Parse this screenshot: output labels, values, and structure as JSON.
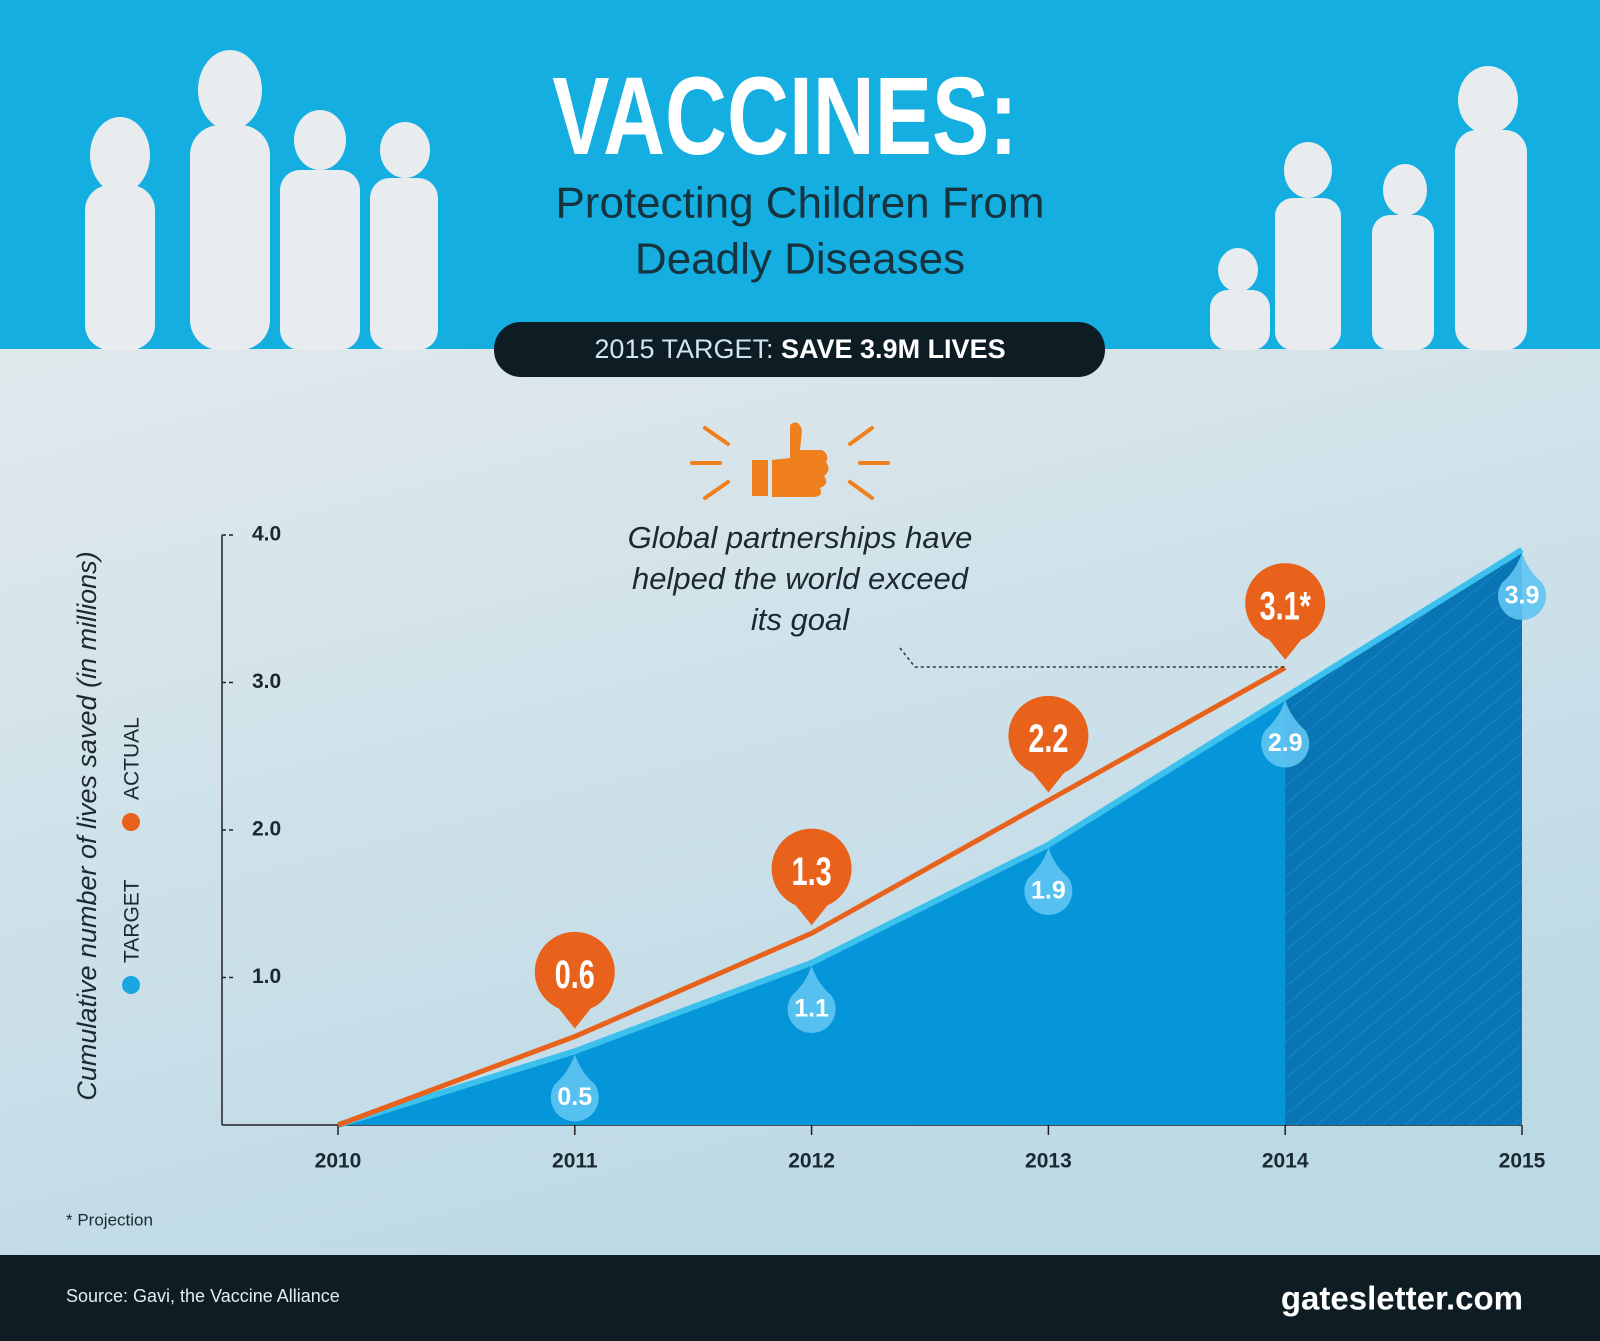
{
  "header": {
    "title": "VACCINES:",
    "subtitle_lines": [
      "Protecting Children From",
      "Deadly Diseases"
    ],
    "banner_prefix": "2015 TARGET:",
    "banner_strong": "SAVE 3.9M LIVES"
  },
  "chart_data": {
    "type": "line",
    "annotation": [
      "Global partnerships have",
      "helped the world exceed",
      "its goal"
    ],
    "y_label": "Cumulative number of lives saved (in millions)",
    "x": [
      2010,
      2011,
      2012,
      2013,
      2014,
      2015
    ],
    "xlim": [
      2010,
      2015
    ],
    "xticks": [
      2010,
      2011,
      2012,
      2013,
      2014,
      2015
    ],
    "ylim": [
      0,
      4
    ],
    "yticks": [
      {
        "value": 1,
        "label": "1.0"
      },
      {
        "value": 2,
        "label": "2.0"
      },
      {
        "value": 3,
        "label": "3.0"
      },
      {
        "value": 4,
        "label": "4.0"
      }
    ],
    "series": [
      {
        "name": "ACTUAL",
        "color": "#e8621c",
        "values": [
          0,
          0.6,
          1.3,
          2.2,
          3.1,
          null
        ],
        "value_labels": [
          null,
          "0.6",
          "1.3",
          "2.2",
          "3.1*",
          null
        ]
      },
      {
        "name": "TARGET",
        "color": "#1aa6e0",
        "values": [
          0,
          0.5,
          1.1,
          1.9,
          2.9,
          3.9
        ],
        "value_labels": [
          null,
          "0.5",
          "1.1",
          "1.9",
          "2.9",
          "3.9"
        ]
      }
    ],
    "footnote": "* Projection"
  },
  "footer": {
    "source": "Source: Gavi, the Vaccine Alliance",
    "brand": "gatesletter.com"
  }
}
